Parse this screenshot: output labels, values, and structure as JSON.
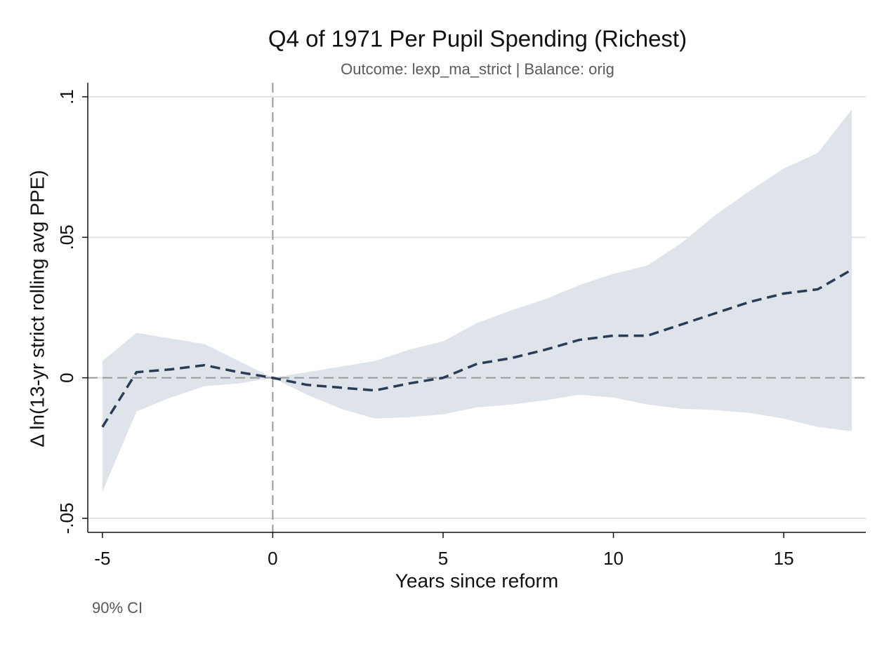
{
  "chart_data": {
    "type": "line-band",
    "title": "Q4 of 1971 Per Pupil Spending (Richest)",
    "subtitle": "Outcome: lexp_ma_strict | Balance: orig",
    "x_label": "Years since reform",
    "y_label": "Δ ln(13-yr strict rolling avg PPE)",
    "note": "90% CI",
    "x": [
      -5,
      -4,
      -3,
      -2,
      -1,
      0,
      1,
      2,
      3,
      4,
      5,
      6,
      7,
      8,
      9,
      10,
      11,
      12,
      13,
      14,
      15,
      16,
      17
    ],
    "series": [
      {
        "color": "#2a3d57",
        "band_color": "#dfe3ea",
        "values": [
          -0.0175,
          0.002,
          0.003,
          0.0045,
          0.002,
          0,
          -0.0025,
          -0.0035,
          -0.0045,
          -0.002,
          0,
          0.005,
          0.007,
          0.01,
          0.0135,
          0.015,
          0.015,
          0.019,
          0.023,
          0.027,
          0.03,
          0.0315,
          0.0385
        ],
        "upper": [
          0.006,
          0.016,
          0.014,
          0.012,
          0.006,
          0,
          0.002,
          0.004,
          0.006,
          0.01,
          0.013,
          0.0195,
          0.024,
          0.028,
          0.033,
          0.037,
          0.04,
          0.048,
          0.058,
          0.0665,
          0.0745,
          0.08,
          0.0955
        ],
        "lower": [
          -0.0405,
          -0.012,
          -0.007,
          -0.003,
          -0.002,
          0,
          -0.006,
          -0.011,
          -0.0145,
          -0.014,
          -0.013,
          -0.0105,
          -0.0095,
          -0.008,
          -0.006,
          -0.007,
          -0.0095,
          -0.011,
          -0.0115,
          -0.0125,
          -0.0145,
          -0.0175,
          -0.019
        ]
      }
    ],
    "xline": 0,
    "yline": 0,
    "xlim": [
      -5.43,
      17.41
    ],
    "xticks": [
      -5,
      0,
      5,
      10,
      15
    ],
    "ylim": [
      -0.055,
      0.105
    ],
    "yticks": [
      {
        "value": -0.05,
        "label": "-.05"
      },
      0,
      {
        "value": 0.05,
        "label": ".05"
      },
      {
        "value": 0.1,
        "label": ".1"
      }
    ],
    "grid": true
  }
}
